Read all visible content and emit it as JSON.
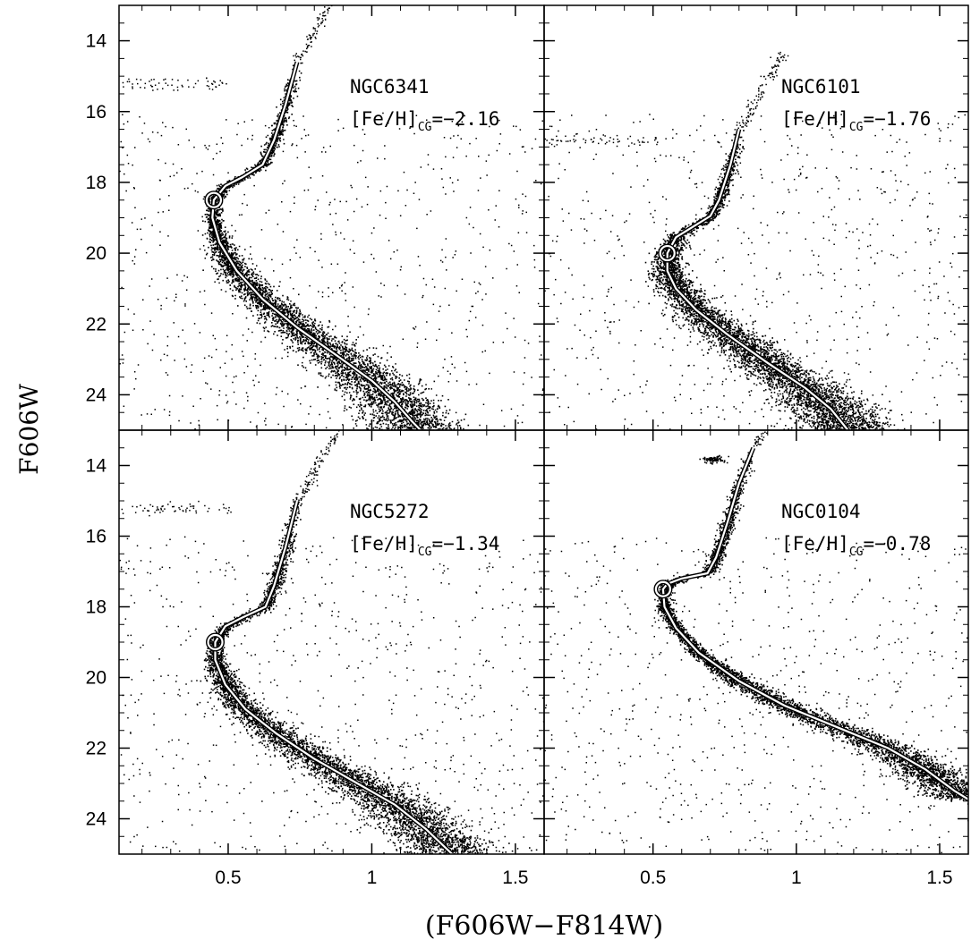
{
  "figure": {
    "xlabel": "(F606W−F814W)",
    "ylabel": "F606W"
  },
  "chart_data": {
    "type": "scatter",
    "layout": "2x2 grid, shared axes",
    "xlim": [
      0.12,
      1.6
    ],
    "ylim": [
      25,
      13.0
    ],
    "y_inverted": true,
    "x_ticks": [
      0.5,
      1,
      1.5
    ],
    "x_tick_labels": [
      "0.5",
      "1",
      "1.5"
    ],
    "y_ticks": [
      14,
      16,
      18,
      20,
      22,
      24
    ],
    "y_tick_labels": [
      "14",
      "16",
      "18",
      "20",
      "22",
      "24"
    ],
    "grid": false,
    "panels": [
      {
        "id": "ngc6341",
        "cluster": "NGC6341",
        "feh_prefix": "[Fe/H]",
        "feh_sub": "CG",
        "feh_value": "=−2.16",
        "feh": -2.16,
        "turnoff": [
          0.45,
          18.5
        ],
        "ridge": [
          [
            0.74,
            14.6
          ],
          [
            0.7,
            15.8
          ],
          [
            0.66,
            16.8
          ],
          [
            0.62,
            17.5
          ],
          [
            0.55,
            17.85
          ],
          [
            0.49,
            18.1
          ],
          [
            0.45,
            18.5
          ],
          [
            0.445,
            19.0
          ],
          [
            0.47,
            19.7
          ],
          [
            0.53,
            20.5
          ],
          [
            0.62,
            21.3
          ],
          [
            0.74,
            22.1
          ],
          [
            0.88,
            22.9
          ],
          [
            1.0,
            23.6
          ],
          [
            1.08,
            24.2
          ],
          [
            1.14,
            24.75
          ],
          [
            1.17,
            25.0
          ]
        ]
      },
      {
        "id": "ngc6101",
        "cluster": "NGC6101",
        "feh_prefix": "[Fe/H]",
        "feh_sub": "CG",
        "feh_value": "=−1.76",
        "feh": -1.76,
        "turnoff": [
          0.55,
          20.0
        ],
        "ridge": [
          [
            0.8,
            16.5
          ],
          [
            0.77,
            17.5
          ],
          [
            0.73,
            18.5
          ],
          [
            0.7,
            18.95
          ],
          [
            0.63,
            19.3
          ],
          [
            0.58,
            19.55
          ],
          [
            0.55,
            20.0
          ],
          [
            0.55,
            20.5
          ],
          [
            0.58,
            21.0
          ],
          [
            0.65,
            21.6
          ],
          [
            0.76,
            22.3
          ],
          [
            0.9,
            23.1
          ],
          [
            1.03,
            23.8
          ],
          [
            1.12,
            24.4
          ],
          [
            1.18,
            25.0
          ]
        ]
      },
      {
        "id": "ngc5272",
        "cluster": "NGC5272",
        "feh_prefix": "[Fe/H]",
        "feh_sub": "CG",
        "feh_value": "=−1.34",
        "feh": -1.34,
        "turnoff": [
          0.455,
          19.0
        ],
        "ridge": [
          [
            0.74,
            15.0
          ],
          [
            0.7,
            16.3
          ],
          [
            0.66,
            17.4
          ],
          [
            0.63,
            18.0
          ],
          [
            0.55,
            18.3
          ],
          [
            0.49,
            18.55
          ],
          [
            0.455,
            19.0
          ],
          [
            0.455,
            19.5
          ],
          [
            0.49,
            20.2
          ],
          [
            0.56,
            20.9
          ],
          [
            0.67,
            21.6
          ],
          [
            0.8,
            22.3
          ],
          [
            0.95,
            23.0
          ],
          [
            1.08,
            23.6
          ],
          [
            1.19,
            24.3
          ],
          [
            1.28,
            25.0
          ]
        ]
      },
      {
        "id": "ngc0104",
        "cluster": "NGC0104",
        "feh_prefix": "[Fe/H]",
        "feh_sub": "CG",
        "feh_value": "=−0.78",
        "feh": -0.78,
        "turnoff": [
          0.535,
          17.5
        ],
        "ridge": [
          [
            0.85,
            13.5
          ],
          [
            0.8,
            14.5
          ],
          [
            0.76,
            15.6
          ],
          [
            0.72,
            16.6
          ],
          [
            0.69,
            17.05
          ],
          [
            0.6,
            17.2
          ],
          [
            0.55,
            17.35
          ],
          [
            0.535,
            17.5
          ],
          [
            0.54,
            18.0
          ],
          [
            0.58,
            18.6
          ],
          [
            0.66,
            19.3
          ],
          [
            0.8,
            20.1
          ],
          [
            0.96,
            20.8
          ],
          [
            1.14,
            21.4
          ],
          [
            1.32,
            22.0
          ],
          [
            1.45,
            22.6
          ],
          [
            1.55,
            23.2
          ],
          [
            1.6,
            23.45
          ]
        ],
        "hb_clump": [
          0.71,
          13.8
        ]
      }
    ]
  }
}
